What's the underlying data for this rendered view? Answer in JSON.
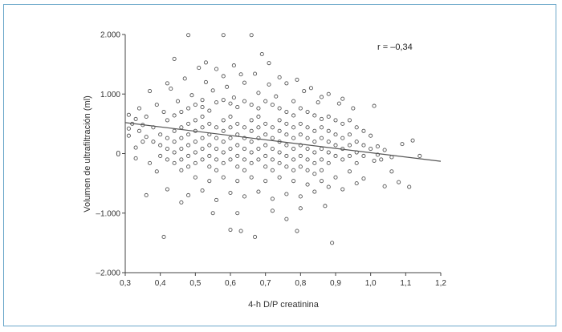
{
  "chart_data": {
    "type": "scatter",
    "title": "",
    "xlabel": "4-h D/P creatinina",
    "ylabel": "Volumen de ultrafiltración (ml)",
    "annotation": "r = –0,34",
    "xlim": [
      0.3,
      1.2
    ],
    "ylim": [
      -2000,
      2000
    ],
    "x_ticks": [
      {
        "value": 0.3,
        "label": "0,3"
      },
      {
        "value": 0.4,
        "label": "0,4"
      },
      {
        "value": 0.5,
        "label": "0,5"
      },
      {
        "value": 0.6,
        "label": "0,6"
      },
      {
        "value": 0.7,
        "label": "0,7"
      },
      {
        "value": 0.8,
        "label": "0,8"
      },
      {
        "value": 0.9,
        "label": "0,9"
      },
      {
        "value": 1.0,
        "label": "1,0"
      },
      {
        "value": 1.1,
        "label": "1,1"
      },
      {
        "value": 1.2,
        "label": "1,2"
      }
    ],
    "y_ticks": [
      {
        "value": 2000,
        "label": "2.000"
      },
      {
        "value": 1000,
        "label": "1.000"
      },
      {
        "value": 0,
        "label": "0"
      },
      {
        "value": -1000,
        "label": "–1.000"
      },
      {
        "value": -2000,
        "label": "–2.000"
      }
    ],
    "grid": false,
    "regression_line": {
      "x": [
        0.3,
        1.2
      ],
      "y": [
        520,
        -130
      ]
    },
    "marker_color": "#555555",
    "series": [
      {
        "points": [
          [
            0.48,
            1990
          ],
          [
            0.58,
            1990
          ],
          [
            0.66,
            1990
          ],
          [
            0.44,
            1590
          ],
          [
            0.53,
            1530
          ],
          [
            0.69,
            1670
          ],
          [
            0.71,
            1520
          ],
          [
            0.61,
            1480
          ],
          [
            0.51,
            1440
          ],
          [
            0.56,
            1420
          ],
          [
            0.58,
            1300
          ],
          [
            0.63,
            1330
          ],
          [
            0.67,
            1340
          ],
          [
            0.74,
            1280
          ],
          [
            0.79,
            1240
          ],
          [
            0.42,
            1180
          ],
          [
            0.47,
            1260
          ],
          [
            0.53,
            1200
          ],
          [
            0.64,
            1190
          ],
          [
            0.71,
            1160
          ],
          [
            0.83,
            1100
          ],
          [
            0.37,
            1050
          ],
          [
            0.43,
            1090
          ],
          [
            0.59,
            1120
          ],
          [
            0.81,
            1050
          ],
          [
            0.88,
            1000
          ],
          [
            0.92,
            920
          ],
          [
            1.01,
            800
          ],
          [
            0.86,
            950
          ],
          [
            0.76,
            1180
          ],
          [
            0.55,
            1060
          ],
          [
            0.49,
            980
          ],
          [
            0.68,
            1020
          ],
          [
            0.73,
            960
          ],
          [
            0.61,
            940
          ],
          [
            0.52,
            900
          ],
          [
            0.45,
            880
          ],
          [
            0.78,
            880
          ],
          [
            0.85,
            860
          ],
          [
            0.91,
            840
          ],
          [
            0.95,
            760
          ],
          [
            0.39,
            820
          ],
          [
            0.34,
            760
          ],
          [
            0.41,
            700
          ],
          [
            0.31,
            650
          ],
          [
            0.33,
            580
          ],
          [
            0.36,
            620
          ],
          [
            0.32,
            500
          ],
          [
            0.35,
            480
          ],
          [
            0.31,
            420
          ],
          [
            0.34,
            380
          ],
          [
            0.38,
            440
          ],
          [
            0.42,
            560
          ],
          [
            0.44,
            640
          ],
          [
            0.46,
            700
          ],
          [
            0.48,
            760
          ],
          [
            0.5,
            820
          ],
          [
            0.52,
            780
          ],
          [
            0.54,
            720
          ],
          [
            0.56,
            860
          ],
          [
            0.58,
            900
          ],
          [
            0.6,
            840
          ],
          [
            0.62,
            780
          ],
          [
            0.64,
            880
          ],
          [
            0.66,
            820
          ],
          [
            0.68,
            760
          ],
          [
            0.7,
            880
          ],
          [
            0.72,
            820
          ],
          [
            0.74,
            760
          ],
          [
            0.76,
            700
          ],
          [
            0.78,
            640
          ],
          [
            0.8,
            760
          ],
          [
            0.82,
            700
          ],
          [
            0.84,
            640
          ],
          [
            0.86,
            580
          ],
          [
            0.88,
            620
          ],
          [
            0.9,
            560
          ],
          [
            0.92,
            500
          ],
          [
            0.94,
            560
          ],
          [
            0.96,
            440
          ],
          [
            0.98,
            380
          ],
          [
            1.0,
            300
          ],
          [
            0.4,
            320
          ],
          [
            0.42,
            260
          ],
          [
            0.44,
            380
          ],
          [
            0.46,
            440
          ],
          [
            0.48,
            500
          ],
          [
            0.5,
            560
          ],
          [
            0.52,
            620
          ],
          [
            0.54,
            500
          ],
          [
            0.56,
            440
          ],
          [
            0.58,
            560
          ],
          [
            0.6,
            620
          ],
          [
            0.62,
            500
          ],
          [
            0.64,
            440
          ],
          [
            0.66,
            560
          ],
          [
            0.68,
            620
          ],
          [
            0.7,
            500
          ],
          [
            0.72,
            440
          ],
          [
            0.74,
            560
          ],
          [
            0.76,
            500
          ],
          [
            0.78,
            440
          ],
          [
            0.8,
            500
          ],
          [
            0.82,
            440
          ],
          [
            0.84,
            380
          ],
          [
            0.86,
            440
          ],
          [
            0.88,
            380
          ],
          [
            0.9,
            320
          ],
          [
            0.92,
            260
          ],
          [
            0.94,
            320
          ],
          [
            0.96,
            200
          ],
          [
            0.98,
            140
          ],
          [
            1.0,
            80
          ],
          [
            1.02,
            -20
          ],
          [
            0.36,
            280
          ],
          [
            0.38,
            200
          ],
          [
            0.4,
            140
          ],
          [
            0.42,
            80
          ],
          [
            0.44,
            200
          ],
          [
            0.46,
            260
          ],
          [
            0.48,
            320
          ],
          [
            0.5,
            380
          ],
          [
            0.52,
            440
          ],
          [
            0.54,
            320
          ],
          [
            0.56,
            260
          ],
          [
            0.58,
            380
          ],
          [
            0.6,
            440
          ],
          [
            0.62,
            320
          ],
          [
            0.64,
            260
          ],
          [
            0.66,
            380
          ],
          [
            0.68,
            440
          ],
          [
            0.7,
            320
          ],
          [
            0.72,
            260
          ],
          [
            0.74,
            380
          ],
          [
            0.76,
            320
          ],
          [
            0.78,
            260
          ],
          [
            0.8,
            320
          ],
          [
            0.82,
            260
          ],
          [
            0.84,
            200
          ],
          [
            0.86,
            260
          ],
          [
            0.88,
            200
          ],
          [
            0.9,
            140
          ],
          [
            0.92,
            80
          ],
          [
            0.94,
            140
          ],
          [
            0.96,
            20
          ],
          [
            0.98,
            -40
          ],
          [
            0.4,
            -40
          ],
          [
            0.42,
            -100
          ],
          [
            0.44,
            20
          ],
          [
            0.46,
            80
          ],
          [
            0.48,
            140
          ],
          [
            0.5,
            200
          ],
          [
            0.52,
            260
          ],
          [
            0.54,
            140
          ],
          [
            0.56,
            80
          ],
          [
            0.58,
            200
          ],
          [
            0.6,
            260
          ],
          [
            0.62,
            140
          ],
          [
            0.64,
            80
          ],
          [
            0.66,
            200
          ],
          [
            0.68,
            260
          ],
          [
            0.7,
            140
          ],
          [
            0.72,
            80
          ],
          [
            0.74,
            200
          ],
          [
            0.76,
            140
          ],
          [
            0.78,
            80
          ],
          [
            0.8,
            140
          ],
          [
            0.82,
            80
          ],
          [
            0.84,
            20
          ],
          [
            0.86,
            80
          ],
          [
            0.88,
            20
          ],
          [
            0.9,
            -40
          ],
          [
            0.92,
            -100
          ],
          [
            0.94,
            -40
          ],
          [
            0.96,
            -160
          ],
          [
            0.44,
            -160
          ],
          [
            0.46,
            -100
          ],
          [
            0.48,
            -40
          ],
          [
            0.5,
            20
          ],
          [
            0.52,
            80
          ],
          [
            0.54,
            -40
          ],
          [
            0.56,
            -100
          ],
          [
            0.58,
            20
          ],
          [
            0.6,
            80
          ],
          [
            0.62,
            -40
          ],
          [
            0.64,
            -100
          ],
          [
            0.66,
            20
          ],
          [
            0.68,
            80
          ],
          [
            0.7,
            -40
          ],
          [
            0.72,
            -100
          ],
          [
            0.74,
            20
          ],
          [
            0.76,
            -40
          ],
          [
            0.78,
            -100
          ],
          [
            0.8,
            -40
          ],
          [
            0.82,
            -100
          ],
          [
            0.84,
            -160
          ],
          [
            0.86,
            -100
          ],
          [
            0.88,
            -160
          ],
          [
            0.46,
            -280
          ],
          [
            0.48,
            -220
          ],
          [
            0.5,
            -160
          ],
          [
            0.52,
            -100
          ],
          [
            0.54,
            -220
          ],
          [
            0.56,
            -280
          ],
          [
            0.58,
            -160
          ],
          [
            0.6,
            -100
          ],
          [
            0.62,
            -220
          ],
          [
            0.64,
            -280
          ],
          [
            0.66,
            -160
          ],
          [
            0.68,
            -100
          ],
          [
            0.7,
            -220
          ],
          [
            0.72,
            -280
          ],
          [
            0.74,
            -160
          ],
          [
            0.76,
            -220
          ],
          [
            0.78,
            -280
          ],
          [
            0.8,
            -220
          ],
          [
            0.82,
            -280
          ],
          [
            0.84,
            -340
          ],
          [
            0.86,
            -280
          ],
          [
            0.5,
            -400
          ],
          [
            0.54,
            -460
          ],
          [
            0.58,
            -400
          ],
          [
            0.62,
            -460
          ],
          [
            0.66,
            -400
          ],
          [
            0.7,
            -460
          ],
          [
            0.74,
            -400
          ],
          [
            0.78,
            -460
          ],
          [
            0.82,
            -520
          ],
          [
            0.86,
            -460
          ],
          [
            0.9,
            -400
          ],
          [
            0.94,
            -300
          ],
          [
            0.98,
            -420
          ],
          [
            0.42,
            -600
          ],
          [
            0.48,
            -700
          ],
          [
            0.52,
            -620
          ],
          [
            0.56,
            -780
          ],
          [
            0.6,
            -660
          ],
          [
            0.64,
            -720
          ],
          [
            0.68,
            -640
          ],
          [
            0.72,
            -760
          ],
          [
            0.76,
            -680
          ],
          [
            0.8,
            -720
          ],
          [
            0.84,
            -640
          ],
          [
            0.88,
            -560
          ],
          [
            0.92,
            -600
          ],
          [
            0.96,
            -500
          ],
          [
            0.36,
            -700
          ],
          [
            0.46,
            -820
          ],
          [
            0.55,
            -1000
          ],
          [
            0.62,
            -1000
          ],
          [
            0.72,
            -960
          ],
          [
            0.8,
            -920
          ],
          [
            0.87,
            -880
          ],
          [
            0.6,
            -1280
          ],
          [
            0.63,
            -1300
          ],
          [
            0.67,
            -1400
          ],
          [
            0.76,
            -1100
          ],
          [
            0.79,
            -1300
          ],
          [
            0.41,
            -1400
          ],
          [
            0.89,
            -1500
          ],
          [
            1.04,
            -550
          ],
          [
            1.08,
            -480
          ],
          [
            1.11,
            -560
          ],
          [
            1.06,
            -300
          ],
          [
            1.03,
            -100
          ],
          [
            0.33,
            100
          ],
          [
            0.31,
            300
          ],
          [
            0.35,
            200
          ],
          [
            0.37,
            -160
          ],
          [
            0.39,
            -300
          ],
          [
            0.33,
            -80
          ],
          [
            1.02,
            120
          ],
          [
            1.04,
            60
          ],
          [
            1.12,
            220
          ],
          [
            1.09,
            160
          ],
          [
            1.14,
            -40
          ],
          [
            1.06,
            -60
          ],
          [
            1.01,
            -120
          ]
        ]
      }
    ]
  }
}
